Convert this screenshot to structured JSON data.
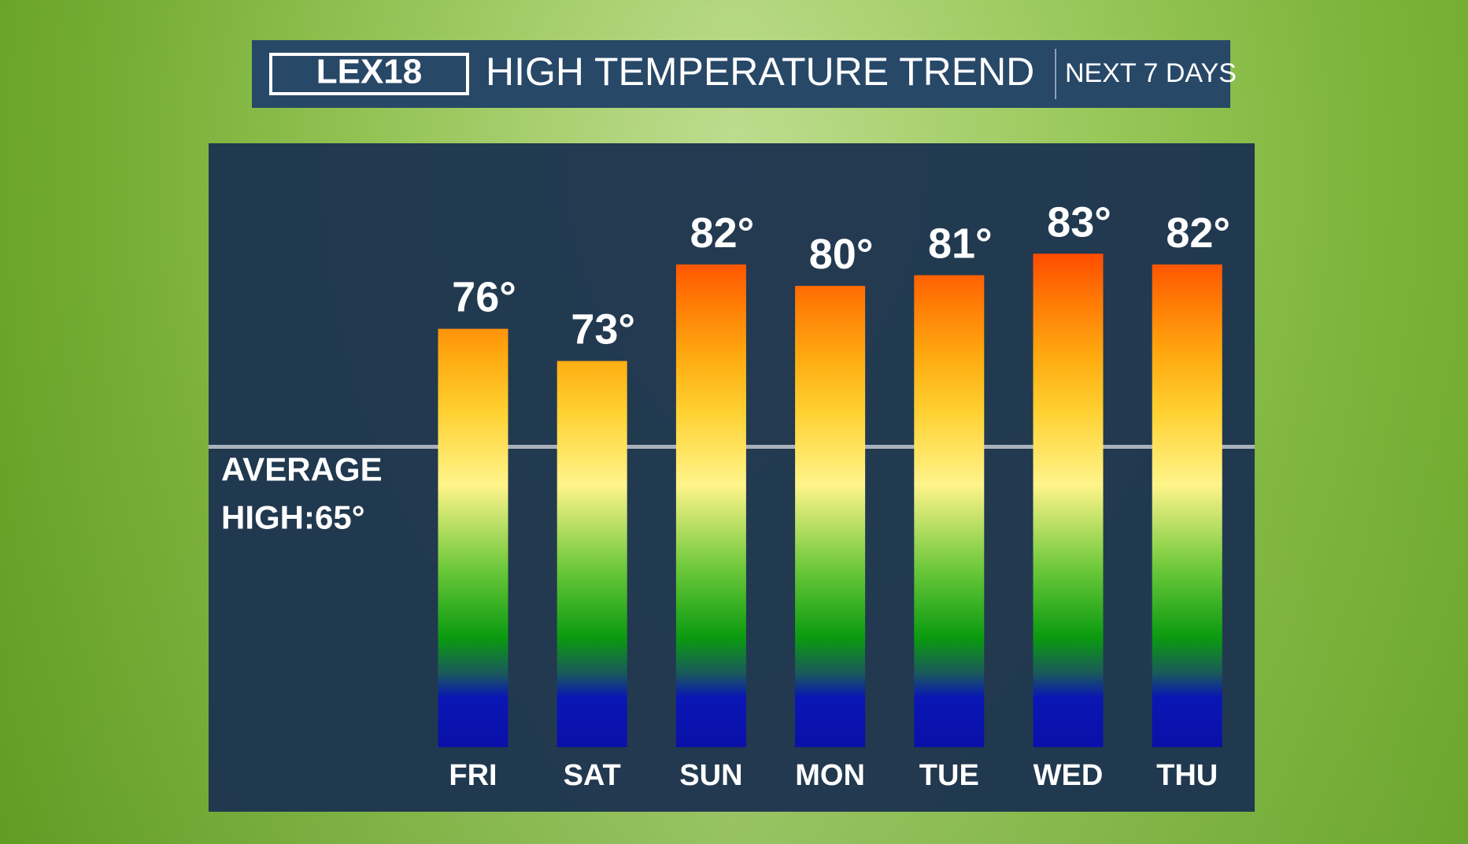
{
  "logo": "LEX18",
  "chart_data": {
    "type": "bar",
    "title": "HIGH TEMPERATURE TREND",
    "subtitle": "NEXT 7 DAYS",
    "categories": [
      "FRI",
      "SAT",
      "SUN",
      "MON",
      "TUE",
      "WED",
      "THU"
    ],
    "values": [
      76,
      73,
      82,
      80,
      81,
      83,
      82
    ],
    "value_labels": [
      "76°",
      "73°",
      "82°",
      "80°",
      "81°",
      "83°",
      "82°"
    ],
    "average": 65,
    "average_label": [
      "AVERAGE",
      "HIGH:65°"
    ],
    "ylim": [
      37,
      93
    ]
  }
}
